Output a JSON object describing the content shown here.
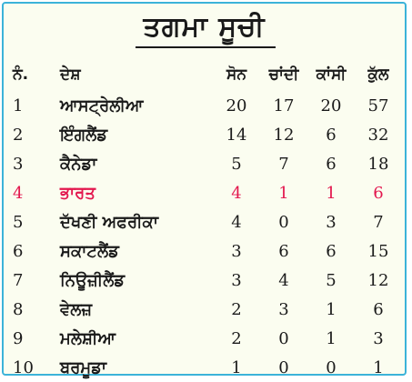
{
  "title": "ਤਗਮਾ ਸੂਚੀ",
  "colors": {
    "border": "#3cb3d9",
    "background": "#fbfdf0",
    "highlight": "#e3174e"
  },
  "columns": {
    "no": "ਨੰ.",
    "country": "ਦੇਸ਼",
    "gold": "ਸੋਨ",
    "silver": "ਚਾਂਦੀ",
    "bronze": "ਕਾਂਸੀ",
    "total": "ਕੁੱਲ"
  },
  "rows": [
    {
      "no": "1",
      "country": "ਆਸਟ੍ਰੇਲੀਆ",
      "gold": "20",
      "silver": "17",
      "bronze": "20",
      "total": "57"
    },
    {
      "no": "2",
      "country": "ਇੰਗਲੈਂਡ",
      "gold": "14",
      "silver": "12",
      "bronze": "6",
      "total": "32"
    },
    {
      "no": "3",
      "country": "ਕੈਨੇਡਾ",
      "gold": "5",
      "silver": "7",
      "bronze": "6",
      "total": "18"
    },
    {
      "no": "4",
      "country": "ਭਾਰਤ",
      "gold": "4",
      "silver": "1",
      "bronze": "1",
      "total": "6"
    },
    {
      "no": "5",
      "country": "ਦੱਖਣੀ ਅਫਰੀਕਾ",
      "gold": "4",
      "silver": "0",
      "bronze": "3",
      "total": "7"
    },
    {
      "no": "6",
      "country": "ਸਕਾਟਲੈਂਡ",
      "gold": "3",
      "silver": "6",
      "bronze": "6",
      "total": "15"
    },
    {
      "no": "7",
      "country": "ਨਿਊਜ਼ੀਲੈਂਡ",
      "gold": "3",
      "silver": "4",
      "bronze": "5",
      "total": "12"
    },
    {
      "no": "8",
      "country": "ਵੇਲਜ਼",
      "gold": "2",
      "silver": "3",
      "bronze": "1",
      "total": "6"
    },
    {
      "no": "9",
      "country": "ਮਲੇਸ਼ੀਆ",
      "gold": "2",
      "silver": "0",
      "bronze": "1",
      "total": "3"
    },
    {
      "no": "10",
      "country": "ਬਰਮੂਡਾ",
      "gold": "1",
      "silver": "0",
      "bronze": "0",
      "total": "1"
    }
  ]
}
